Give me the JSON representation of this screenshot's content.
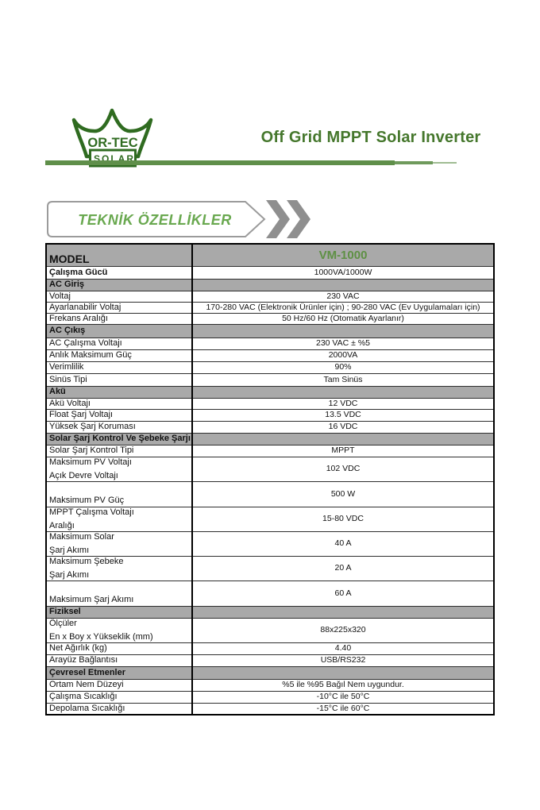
{
  "colors": {
    "green-logo": "#2f6b20",
    "green-title": "#45772c",
    "green-banner": "#69a84f",
    "green-vm": "#5e9044",
    "green-line": "#5f8f4a",
    "gray-section": "#a9a9a9",
    "chevron-gray": "#8f8f8f",
    "banner-border": "#9b9b9b"
  },
  "header": {
    "logo": {
      "brand": "OR-TEC",
      "sub": "SOLAR"
    },
    "title": "Off Grid MPPT Solar Inverter"
  },
  "banner": {
    "label": "TEKNİK ÖZELLİKLER"
  },
  "table": {
    "rows": [
      {
        "type": "model",
        "lines": [
          "MODEL"
        ],
        "value": "VM-1000",
        "height": 28
      },
      {
        "type": "spec",
        "bold": true,
        "lines": [
          "Çalışma Gücü"
        ],
        "value": "1000VA/1000W",
        "height": 16
      },
      {
        "type": "section",
        "lines": [
          "AC Giriş"
        ],
        "height": 15
      },
      {
        "type": "spec",
        "lines": [
          "Voltaj"
        ],
        "value": "230 VAC",
        "height": 14
      },
      {
        "type": "spec",
        "lines": [
          "Ayarlanabilir Voltaj"
        ],
        "value": "170-280 VAC (Elektronik Ürünler için) ; 90-280 VAC (Ev Uygulamaları için)",
        "height": 14
      },
      {
        "type": "spec",
        "lines": [
          "Frekans Aralığı"
        ],
        "value": "50 Hz/60 Hz (Otomatik Ayarlanır)",
        "height": 13
      },
      {
        "type": "section",
        "lines": [
          "AC Çıkış"
        ],
        "height": 17
      },
      {
        "type": "spec",
        "lines": [
          "AC Çalışma Voltajı"
        ],
        "value": "230 VAC ± %5",
        "height": 15
      },
      {
        "type": "spec",
        "lines": [
          "Anlık Maksimum Güç"
        ],
        "value": "2000VA",
        "height": 15
      },
      {
        "type": "spec",
        "lines": [
          "Verimlilik"
        ],
        "value": "90%",
        "height": 15
      },
      {
        "type": "spec",
        "lines": [
          "Sinüs Tipi"
        ],
        "value": "Tam Sinüs",
        "height": 16
      },
      {
        "type": "section",
        "lines": [
          "Akü"
        ],
        "height": 15
      },
      {
        "type": "spec",
        "lines": [
          "Akü Voltajı"
        ],
        "value": "12 VDC",
        "height": 14
      },
      {
        "type": "spec",
        "lines": [
          "Float Şarj Voltajı"
        ],
        "value": "13.5 VDC",
        "height": 15
      },
      {
        "type": "spec",
        "lines": [
          "Yüksek Şarj Koruması"
        ],
        "value": "16 VDC",
        "height": 15
      },
      {
        "type": "section",
        "lines": [
          "Solar Şarj Kontrol Ve Şebeke Şarjı"
        ],
        "height": 15
      },
      {
        "type": "spec",
        "lines": [
          "Solar Şarj Kontrol Tipi"
        ],
        "value": "MPPT",
        "height": 15
      },
      {
        "type": "spec",
        "lines": [
          "Maksimum PV Voltajı",
          "Açık Devre Voltajı"
        ],
        "value": "102 VDC",
        "height": 30
      },
      {
        "type": "spec",
        "align": "bottom",
        "lines": [
          "Maksimum PV Güç"
        ],
        "value": "500 W",
        "height": 32
      },
      {
        "type": "spec",
        "lines": [
          "MPPT Çalışma Voltajı",
          "Aralığı"
        ],
        "value": "15-80 VDC",
        "height": 31
      },
      {
        "type": "spec",
        "lines": [
          "Maksimum Solar",
          "Şarj Akımı"
        ],
        "value": "40 A",
        "height": 30
      },
      {
        "type": "spec",
        "lines": [
          "Maksimum Şebeke",
          "Şarj Akımı"
        ],
        "value": "20 A",
        "height": 30
      },
      {
        "type": "spec",
        "align": "bottom",
        "lines": [
          "Maksimum Şarj Akımı"
        ],
        "value": "60 A",
        "height": 32
      },
      {
        "type": "section",
        "lines": [
          "Fiziksel"
        ],
        "height": 15
      },
      {
        "type": "spec",
        "lines": [
          "Ölçüler",
          "En x Boy x Yükseklik (mm)"
        ],
        "value": "88x225x320",
        "height": 30
      },
      {
        "type": "spec",
        "lines": [
          "Net Ağırlık (kg)"
        ],
        "value": "4.40",
        "height": 15
      },
      {
        "type": "spec",
        "lines": [
          "Arayüz Bağlantısı"
        ],
        "value": "USB/RS232",
        "height": 15
      },
      {
        "type": "section",
        "lines": [
          "Çevresel Etmenler"
        ],
        "height": 16
      },
      {
        "type": "spec",
        "lines": [
          "Ortam Nem Düzeyi"
        ],
        "value": "%5 ile %95 Bağıl Nem uygundur.",
        "height": 15
      },
      {
        "type": "spec",
        "lines": [
          "Çalışma Sıcaklığı"
        ],
        "value": "-10°C ile 50°C",
        "height": 15
      },
      {
        "type": "spec",
        "lines": [
          "Depolama Sıcaklığı"
        ],
        "value": "-15°C ile 60°C",
        "height": 15
      }
    ]
  }
}
